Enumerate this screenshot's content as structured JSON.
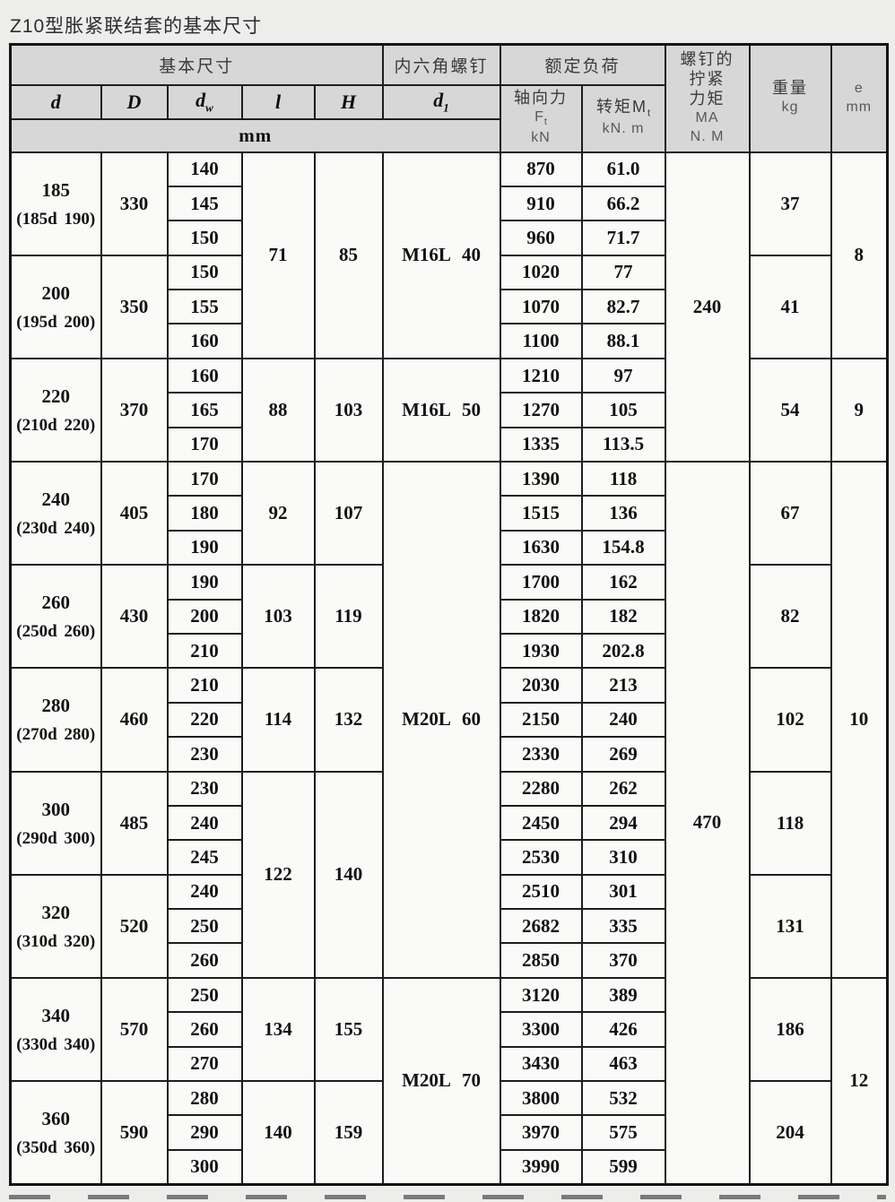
{
  "title": "Z10型胀紧联结套的基本尺寸",
  "colors": {
    "page_bg": "#edeeec",
    "header_bg": "#d7d7d7",
    "cell_bg": "#fafaf8",
    "border": "#1d1d1d",
    "header_text": "#3a3a3a",
    "body_text": "#111111"
  },
  "table": {
    "header": {
      "basic_dims": "基本尺寸",
      "hex_screw": "内六角螺钉",
      "rated_load": "额定负荷",
      "col_d": "d",
      "col_D": "D",
      "col_dw": {
        "base": "d",
        "sub": "w"
      },
      "col_l": "l",
      "col_H": "H",
      "col_d1": {
        "base": "d",
        "sub": "1"
      },
      "mm": "mm",
      "axial": {
        "label": "轴向力",
        "sym": "F",
        "sym_sub": "t",
        "unit": "kN"
      },
      "torque": {
        "label": "转矩M",
        "sym_sub": "t",
        "unit": "kN. m"
      },
      "screw_torque": {
        "line1": "螺钉的",
        "line2": "拧紧",
        "line3": "力矩",
        "line4": "MA",
        "line5": "N. M"
      },
      "weight": {
        "label": "重量",
        "unit": "kg"
      },
      "e": {
        "label": "e",
        "unit": "mm"
      }
    },
    "groups": [
      {
        "d": "185",
        "d_range": "(185d 190)",
        "D": "330",
        "dw": [
          "140",
          "145",
          "150"
        ],
        "Ft": [
          "870",
          "910",
          "960"
        ],
        "Mt": [
          "61.0",
          "66.2",
          "71.7"
        ],
        "kg": "37"
      },
      {
        "d": "200",
        "d_range": "(195d 200)",
        "D": "350",
        "dw": [
          "150",
          "155",
          "160"
        ],
        "Ft": [
          "1020",
          "1070",
          "1100"
        ],
        "Mt": [
          "77",
          "82.7",
          "88.1"
        ],
        "kg": "41"
      },
      {
        "d": "220",
        "d_range": "(210d 220)",
        "D": "370",
        "dw": [
          "160",
          "165",
          "170"
        ],
        "Ft": [
          "1210",
          "1270",
          "1335"
        ],
        "Mt": [
          "97",
          "105",
          "113.5"
        ],
        "kg": "54"
      },
      {
        "d": "240",
        "d_range": "(230d 240)",
        "D": "405",
        "dw": [
          "170",
          "180",
          "190"
        ],
        "Ft": [
          "1390",
          "1515",
          "1630"
        ],
        "Mt": [
          "118",
          "136",
          "154.8"
        ],
        "kg": "67"
      },
      {
        "d": "260",
        "d_range": "(250d 260)",
        "D": "430",
        "dw": [
          "190",
          "200",
          "210"
        ],
        "Ft": [
          "1700",
          "1820",
          "1930"
        ],
        "Mt": [
          "162",
          "182",
          "202.8"
        ],
        "kg": "82"
      },
      {
        "d": "280",
        "d_range": "(270d 280)",
        "D": "460",
        "dw": [
          "210",
          "220",
          "230"
        ],
        "Ft": [
          "2030",
          "2150",
          "2330"
        ],
        "Mt": [
          "213",
          "240",
          "269"
        ],
        "kg": "102"
      },
      {
        "d": "300",
        "d_range": "(290d 300)",
        "D": "485",
        "dw": [
          "230",
          "240",
          "245"
        ],
        "Ft": [
          "2280",
          "2450",
          "2530"
        ],
        "Mt": [
          "262",
          "294",
          "310"
        ],
        "kg": "118"
      },
      {
        "d": "320",
        "d_range": "(310d 320)",
        "D": "520",
        "dw": [
          "240",
          "250",
          "260"
        ],
        "Ft": [
          "2510",
          "2682",
          "2850"
        ],
        "Mt": [
          "301",
          "335",
          "370"
        ],
        "kg": "131"
      },
      {
        "d": "340",
        "d_range": "(330d 340)",
        "D": "570",
        "dw": [
          "250",
          "260",
          "270"
        ],
        "Ft": [
          "3120",
          "3300",
          "3430"
        ],
        "Mt": [
          "389",
          "426",
          "463"
        ],
        "kg": "186"
      },
      {
        "d": "360",
        "d_range": "(350d 360)",
        "D": "590",
        "dw": [
          "280",
          "290",
          "300"
        ],
        "Ft": [
          "3800",
          "3970",
          "3990"
        ],
        "Mt": [
          "532",
          "575",
          "599"
        ],
        "kg": "204"
      }
    ],
    "lH_spans": [
      {
        "l": "71",
        "H": "85",
        "rows": 6
      },
      {
        "l": "88",
        "H": "103",
        "rows": 3
      },
      {
        "l": "92",
        "H": "107",
        "rows": 3
      },
      {
        "l": "103",
        "H": "119",
        "rows": 3
      },
      {
        "l": "114",
        "H": "132",
        "rows": 3
      },
      {
        "l": "122",
        "H": "140",
        "rows": 6
      },
      {
        "l": "134",
        "H": "155",
        "rows": 3
      },
      {
        "l": "140",
        "H": "159",
        "rows": 3
      }
    ],
    "d1_spans": [
      {
        "label": "M16L 40",
        "rows": 6
      },
      {
        "label": "M16L 50",
        "rows": 3
      },
      {
        "label": "M20L 60",
        "rows": 15
      },
      {
        "label": "M20L 70",
        "rows": 6
      }
    ],
    "ma_spans": [
      {
        "value": "240",
        "rows": 9
      },
      {
        "value": "470",
        "rows": 21
      }
    ],
    "e_spans": [
      {
        "value": "8",
        "rows": 6
      },
      {
        "value": "9",
        "rows": 3
      },
      {
        "value": "10",
        "rows": 15
      },
      {
        "value": "12",
        "rows": 6
      }
    ]
  }
}
